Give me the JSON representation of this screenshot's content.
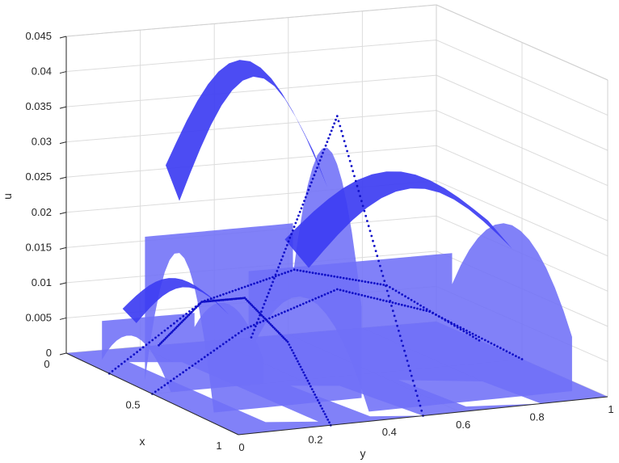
{
  "chart_data": {
    "type": "surface3d",
    "xlabel": "x",
    "ylabel": "y",
    "zlabel": "u",
    "xlim": [
      0,
      1
    ],
    "ylim": [
      0,
      1
    ],
    "zlim": [
      0,
      0.045
    ],
    "x_ticks": [
      "0",
      "0.5",
      "1"
    ],
    "y_ticks": [
      "0",
      "0.2",
      "0.4",
      "0.6",
      "0.8",
      "1"
    ],
    "z_ticks": [
      "0",
      "0.005",
      "0.01",
      "0.015",
      "0.02",
      "0.025",
      "0.03",
      "0.035",
      "0.04",
      "0.045"
    ],
    "grid": true,
    "colors": {
      "surface": "#6f6ff7",
      "surface_shade": "#3d3df2",
      "curve": "#1010c8"
    },
    "surfaces": [
      {
        "x": [
          0.0,
          1.0
        ],
        "y": [
          0.0,
          1.0
        ],
        "z": [
          0.0,
          0.0
        ]
      },
      {
        "x": [
          0.35,
          0.75
        ],
        "y": [
          0.05,
          0.45
        ],
        "z_peak": 0.037
      },
      {
        "x": [
          0.2,
          0.9
        ],
        "y": [
          0.4,
          0.95
        ],
        "z_peak": 0.022
      },
      {
        "x": [
          0.1,
          0.5
        ],
        "y": [
          0.05,
          0.3
        ],
        "z_peak": 0.01
      }
    ],
    "curves": [
      {
        "points": [
          [
            0,
            0.5,
            0
          ],
          [
            0.25,
            0.5,
            0.0185
          ],
          [
            0.5,
            0.5,
            0.037
          ],
          [
            0.75,
            0.5,
            0.0185
          ],
          [
            1,
            0.5,
            0
          ]
        ]
      },
      {
        "points": [
          [
            0.5,
            0,
            0
          ],
          [
            0.5,
            0.25,
            0.008
          ],
          [
            0.5,
            0.5,
            0.0124
          ],
          [
            0.5,
            0.75,
            0.008
          ],
          [
            0.5,
            1,
            0
          ]
        ]
      },
      {
        "points": [
          [
            0,
            0.25,
            0
          ],
          [
            0.25,
            0.25,
            0.009
          ],
          [
            0.5,
            0.25,
            0.0124
          ],
          [
            0.75,
            0.25,
            0.009
          ],
          [
            1,
            0.25,
            0
          ]
        ]
      },
      {
        "points": [
          [
            0.25,
            0,
            0
          ],
          [
            0.25,
            0.25,
            0.009
          ],
          [
            0.25,
            0.5,
            0.0124
          ],
          [
            0.25,
            0.75,
            0.009
          ],
          [
            0.25,
            1,
            0
          ]
        ]
      }
    ]
  }
}
